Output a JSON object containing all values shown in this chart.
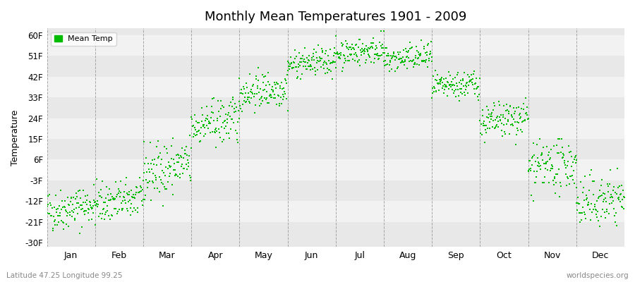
{
  "title": "Monthly Mean Temperatures 1901 - 2009",
  "ylabel": "Temperature",
  "xlabel_months": [
    "Jan",
    "Feb",
    "Mar",
    "Apr",
    "May",
    "Jun",
    "Jul",
    "Aug",
    "Sep",
    "Oct",
    "Nov",
    "Dec"
  ],
  "yticks": [
    -30,
    -21,
    -12,
    -3,
    6,
    15,
    24,
    33,
    42,
    51,
    60
  ],
  "ytick_labels": [
    "-30F",
    "-21F",
    "-12F",
    "-3F",
    "6F",
    "15F",
    "24F",
    "33F",
    "42F",
    "51F",
    "60F"
  ],
  "ylim": [
    -32,
    63
  ],
  "dot_color": "#00bb00",
  "dot_size": 2.5,
  "background_color": "#ffffff",
  "plot_bg_color": "#e8e8e8",
  "band_color": "#f2f2f2",
  "grid_color": "#888888",
  "legend_label": "Mean Temp",
  "subtitle": "Latitude 47.25 Longitude 99.25",
  "watermark": "worldspecies.org",
  "n_years": 109,
  "monthly_means": [
    -15,
    -12,
    2,
    22,
    36,
    48,
    53,
    50,
    38,
    23,
    3,
    -12
  ],
  "monthly_stds": [
    4.5,
    4.5,
    6,
    5,
    4,
    3,
    3,
    3,
    3,
    4,
    5.5,
    5.5
  ],
  "monthly_mins": [
    -28,
    -27,
    -14,
    8,
    24,
    40,
    44,
    42,
    30,
    12,
    -12,
    -25
  ],
  "monthly_maxs": [
    -4,
    -2,
    18,
    33,
    46,
    57,
    62,
    58,
    46,
    34,
    15,
    2
  ],
  "monthly_trend": [
    0.03,
    0.03,
    0.04,
    0.03,
    0.02,
    0.02,
    0.02,
    0.02,
    0.02,
    0.03,
    0.03,
    0.03
  ]
}
